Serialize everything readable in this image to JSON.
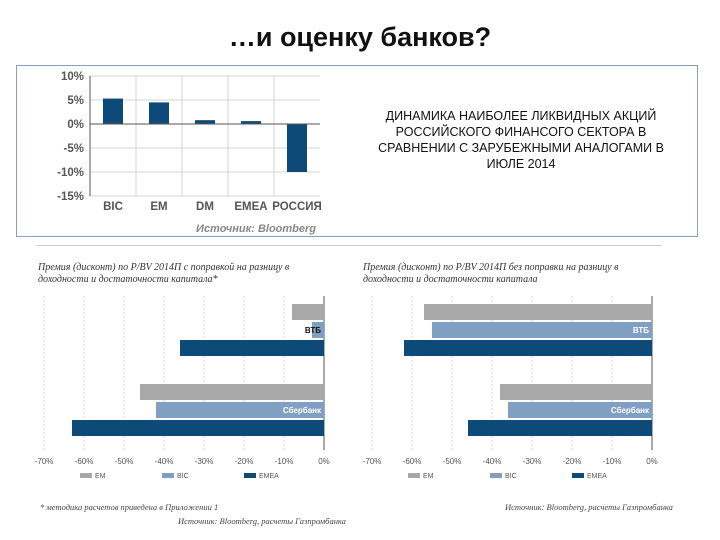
{
  "slide": {
    "title": "…и оценку банков?",
    "caption": "ДИНАМИКА НАИБОЛЕЕ ЛИКВИДНЫХ АКЦИЙ РОССИЙСКОГО ФИНАНСОГО СЕКТОРА В СРАВНЕНИИ С ЗАРУБЕЖНЫМИ АНАЛОГАМИ В ИЮЛЕ 2014",
    "left_footnote": "* методика расчетов приведена в Приложении 1",
    "left_source": "Источник: Bloomberg, расчеты Газпромбанка",
    "right_source": "Источник: Bloomberg, расчеты Газпромбанка"
  },
  "colors": {
    "dark_blue": "#0e4a78",
    "light_gray": "#a8a8a8",
    "steel_blue": "#7fa0c2",
    "axis": "#555555",
    "grid": "#d6d6d6"
  },
  "chart_data": [
    {
      "type": "bar",
      "categories": [
        "BIC",
        "EM",
        "DM",
        "EMEA",
        "РОССИЯ"
      ],
      "values": [
        5.3,
        4.5,
        0.8,
        0.6,
        -10.0
      ],
      "ylim": [
        -15,
        10
      ],
      "yticks": [
        "10%",
        "5%",
        "0%",
        "-5%",
        "-10%",
        "-15%"
      ],
      "ytick_values": [
        10,
        5,
        0,
        -5,
        -10,
        -15
      ],
      "source": "Источник: Bloomberg",
      "color": "#0e4a78"
    },
    {
      "type": "bar",
      "orientation": "horizontal",
      "title": "Премия (дисконт) по P/BV 2014П с поправкой на разницу в доходности и достаточности капитала*",
      "groups": [
        "ВТБ",
        "Сбербанк"
      ],
      "series": [
        {
          "name": "EM",
          "values": [
            -8,
            -46
          ],
          "color": "#a8a8a8"
        },
        {
          "name": "BIC",
          "values": [
            -3,
            -42
          ],
          "color": "#7fa0c2"
        },
        {
          "name": "EMEA",
          "values": [
            -36,
            -63
          ],
          "color": "#0e4a78"
        }
      ],
      "xlim": [
        -70,
        0
      ],
      "xticks": [
        "-70%",
        "-60%",
        "-50%",
        "-40%",
        "-30%",
        "-20%",
        "-10%",
        "0%"
      ],
      "xtick_values": [
        -70,
        -60,
        -50,
        -40,
        -30,
        -20,
        -10,
        0
      ]
    },
    {
      "type": "bar",
      "orientation": "horizontal",
      "title": "Премия (дисконт) по P/BV 2014П без поправки на разницу в доходности и достаточности капитала",
      "groups": [
        "ВТБ",
        "Сбербанк"
      ],
      "series": [
        {
          "name": "EM",
          "values": [
            -57,
            -38
          ],
          "color": "#a8a8a8"
        },
        {
          "name": "BIC",
          "values": [
            -55,
            -36
          ],
          "color": "#7fa0c2"
        },
        {
          "name": "EMEA",
          "values": [
            -62,
            -46
          ],
          "color": "#0e4a78"
        }
      ],
      "xlim": [
        -70,
        0
      ],
      "xticks": [
        "-70%",
        "-60%",
        "-50%",
        "-40%",
        "-30%",
        "-20%",
        "-10%",
        "0%"
      ],
      "xtick_values": [
        -70,
        -60,
        -50,
        -40,
        -30,
        -20,
        -10,
        0
      ]
    }
  ]
}
